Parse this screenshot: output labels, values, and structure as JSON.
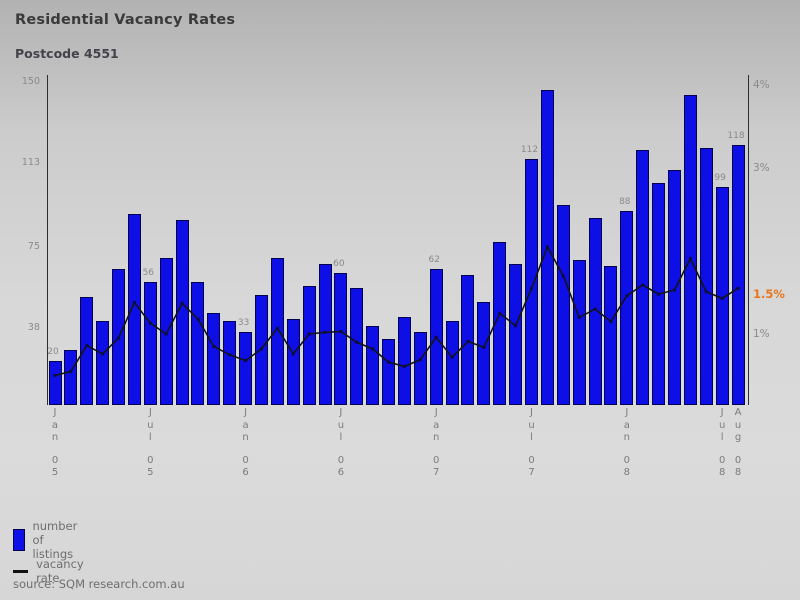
{
  "page": {
    "title": "Residential Vacancy Rates",
    "subtitle": "Postcode 4551",
    "source": "source: SQM research.com.au"
  },
  "legend": {
    "items": [
      {
        "swatch": "blue-square-icon",
        "label": "number of listings"
      },
      {
        "swatch": "black-line-icon",
        "label": "vacancy rate"
      }
    ]
  },
  "chart_data": {
    "type": "bar+line",
    "title": "Residential Vacancy Rates",
    "subtitle": "Postcode 4551",
    "categories": [
      "Jan 05",
      "Feb 05",
      "Mar 05",
      "Apr 05",
      "May 05",
      "Jun 05",
      "Jul 05",
      "Aug 05",
      "Sep 05",
      "Oct 05",
      "Nov 05",
      "Dec 05",
      "Jan 06",
      "Feb 06",
      "Mar 06",
      "Apr 06",
      "May 06",
      "Jun 06",
      "Jul 06",
      "Aug 06",
      "Sep 06",
      "Oct 06",
      "Nov 06",
      "Dec 06",
      "Jan 07",
      "Feb 07",
      "Mar 07",
      "Apr 07",
      "May 07",
      "Jun 07",
      "Jul 07",
      "Aug 07",
      "Sep 07",
      "Oct 07",
      "Nov 07",
      "Dec 07",
      "Jan 08",
      "Feb 08",
      "Mar 08",
      "Apr 08",
      "May 08",
      "Jun 08",
      "Jul 08",
      "Aug 08"
    ],
    "series": [
      {
        "name": "number of listings",
        "type": "bar",
        "axis": "left",
        "color": "#0e0ee6",
        "values": [
          20,
          25,
          49,
          38,
          62,
          87,
          56,
          67,
          84,
          56,
          42,
          38,
          33,
          50,
          67,
          39,
          54,
          64,
          60,
          53,
          36,
          30,
          40,
          33,
          62,
          38,
          59,
          47,
          74,
          64,
          112,
          143,
          91,
          66,
          85,
          63,
          88,
          116,
          101,
          107,
          141,
          117,
          99,
          118
        ]
      },
      {
        "name": "vacancy rate",
        "type": "line",
        "axis": "right",
        "unit": "%",
        "color": "#141414",
        "values": [
          0.5,
          0.55,
          0.86,
          0.76,
          0.95,
          1.38,
          1.13,
          1.0,
          1.37,
          1.18,
          0.85,
          0.75,
          0.68,
          0.82,
          1.07,
          0.76,
          1.0,
          1.02,
          1.03,
          0.9,
          0.82,
          0.66,
          0.61,
          0.69,
          0.96,
          0.72,
          0.91,
          0.84,
          1.25,
          1.1,
          1.55,
          2.05,
          1.7,
          1.2,
          1.3,
          1.15,
          1.46,
          1.59,
          1.48,
          1.53,
          1.91,
          1.51,
          1.43,
          1.55
        ]
      }
    ],
    "bar_value_labels": [
      {
        "index": 0,
        "text": "20"
      },
      {
        "index": 6,
        "text": "56"
      },
      {
        "index": 12,
        "text": "33"
      },
      {
        "index": 18,
        "text": "60"
      },
      {
        "index": 24,
        "text": "62"
      },
      {
        "index": 30,
        "text": "112"
      },
      {
        "index": 36,
        "text": "88"
      },
      {
        "index": 42,
        "text": "99"
      },
      {
        "index": 43,
        "text": "118"
      }
    ],
    "left_axis": {
      "min": 0,
      "max": 150,
      "ticks": [
        150,
        113,
        75,
        38
      ]
    },
    "right_axis": {
      "unit": "%",
      "ticks": [
        {
          "label": "4%",
          "value": 4,
          "highlight": false
        },
        {
          "label": "3%",
          "value": 3,
          "highlight": false
        },
        {
          "label": "1.5%",
          "value": 1.5,
          "highlight": true
        },
        {
          "label": "1%",
          "value": 1,
          "highlight": false
        }
      ],
      "highlight_color": "#e8751a"
    },
    "x_ticks": [
      {
        "index": 0,
        "month": "Jan",
        "year": "05"
      },
      {
        "index": 6,
        "month": "Jul",
        "year": "05"
      },
      {
        "index": 12,
        "month": "Jan",
        "year": "06"
      },
      {
        "index": 18,
        "month": "Jul",
        "year": "06"
      },
      {
        "index": 24,
        "month": "Jan",
        "year": "07"
      },
      {
        "index": 30,
        "month": "Jul",
        "year": "07"
      },
      {
        "index": 36,
        "month": "Jan",
        "year": "08"
      },
      {
        "index": 42,
        "month": "Jul",
        "year": "08"
      },
      {
        "index": 43,
        "month": "Aug",
        "year": "08"
      }
    ],
    "legend_position": "bottom-left",
    "grid": false
  }
}
